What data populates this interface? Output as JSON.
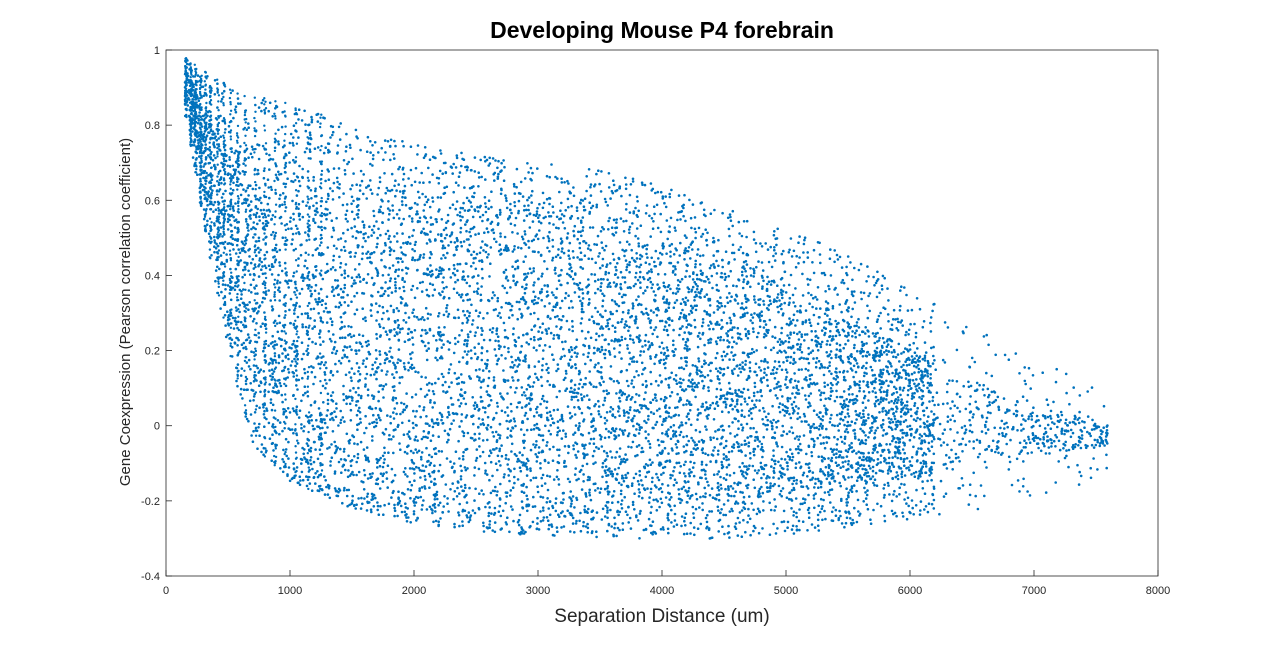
{
  "chart_data": {
    "type": "scatter",
    "title": "Developing Mouse P4 forebrain",
    "xlabel": "Separation Distance (um)",
    "ylabel": "Gene Coexpression (Pearson correlation coefficient)",
    "xlim": [
      0,
      8000
    ],
    "ylim": [
      -0.4,
      1
    ],
    "xticks": [
      0,
      1000,
      2000,
      3000,
      4000,
      5000,
      6000,
      7000,
      8000
    ],
    "yticks": [
      -0.4,
      -0.2,
      0,
      0.2,
      0.4,
      0.6,
      0.8,
      1
    ],
    "xtick_labels": [
      "0",
      "1000",
      "2000",
      "3000",
      "4000",
      "5000",
      "6000",
      "7000",
      "8000"
    ],
    "ytick_labels": [
      "-0.4",
      "-0.2",
      "0",
      "0.2",
      "0.4",
      "0.6",
      "0.8",
      "1"
    ],
    "grid": false,
    "marker_color": "#0072BD",
    "series": [
      {
        "envelope": {
          "x": [
            160,
            300,
            500,
            700,
            1000,
            1500,
            2000,
            2500,
            3000,
            3500,
            4000,
            4500,
            5000,
            5500,
            6000,
            6500,
            7000,
            7500,
            7600
          ],
          "upper": [
            0.98,
            0.95,
            0.91,
            0.88,
            0.86,
            0.8,
            0.75,
            0.72,
            0.7,
            0.68,
            0.64,
            0.58,
            0.52,
            0.46,
            0.36,
            0.27,
            0.18,
            0.12,
            0.08
          ],
          "lower": [
            0.82,
            0.55,
            0.2,
            -0.05,
            -0.15,
            -0.22,
            -0.26,
            -0.28,
            -0.3,
            -0.3,
            -0.3,
            -0.3,
            -0.29,
            -0.27,
            -0.25,
            -0.23,
            -0.2,
            -0.15,
            -0.12
          ],
          "core_upper": [
            0.95,
            0.85,
            0.75,
            0.72,
            0.7,
            0.66,
            0.62,
            0.6,
            0.57,
            0.54,
            0.5,
            0.44,
            0.38,
            0.3,
            0.2,
            0.12,
            0.05,
            0.02,
            0.0
          ],
          "core_lower": [
            0.86,
            0.62,
            0.28,
            0.02,
            -0.1,
            -0.16,
            -0.19,
            -0.21,
            -0.22,
            -0.22,
            -0.22,
            -0.22,
            -0.2,
            -0.18,
            -0.14,
            -0.1,
            -0.08,
            -0.06,
            -0.05
          ]
        }
      }
    ]
  }
}
